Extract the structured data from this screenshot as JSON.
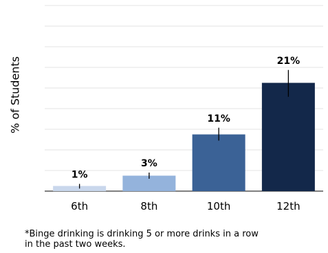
{
  "chart_data": {
    "type": "bar",
    "categories": [
      "6th",
      "8th",
      "10th",
      "12th"
    ],
    "values": [
      1,
      3,
      11,
      21
    ],
    "value_labels": [
      "1%",
      "3%",
      "11%",
      "21%"
    ],
    "error_bars": [
      {
        "low": 0.5,
        "high": 1.4
      },
      {
        "low": 2.4,
        "high": 3.6
      },
      {
        "low": 9.8,
        "high": 12.3
      },
      {
        "low": 18.3,
        "high": 23.5
      }
    ],
    "colors": [
      "#c9d7ec",
      "#94b3dc",
      "#3b6296",
      "#13284a"
    ],
    "ylabel": "% of Students",
    "ylim": [
      0,
      36
    ],
    "grid": true
  },
  "footnote": "*Binge drinking is drinking 5 or more drinks in a row\nin the past two weeks."
}
